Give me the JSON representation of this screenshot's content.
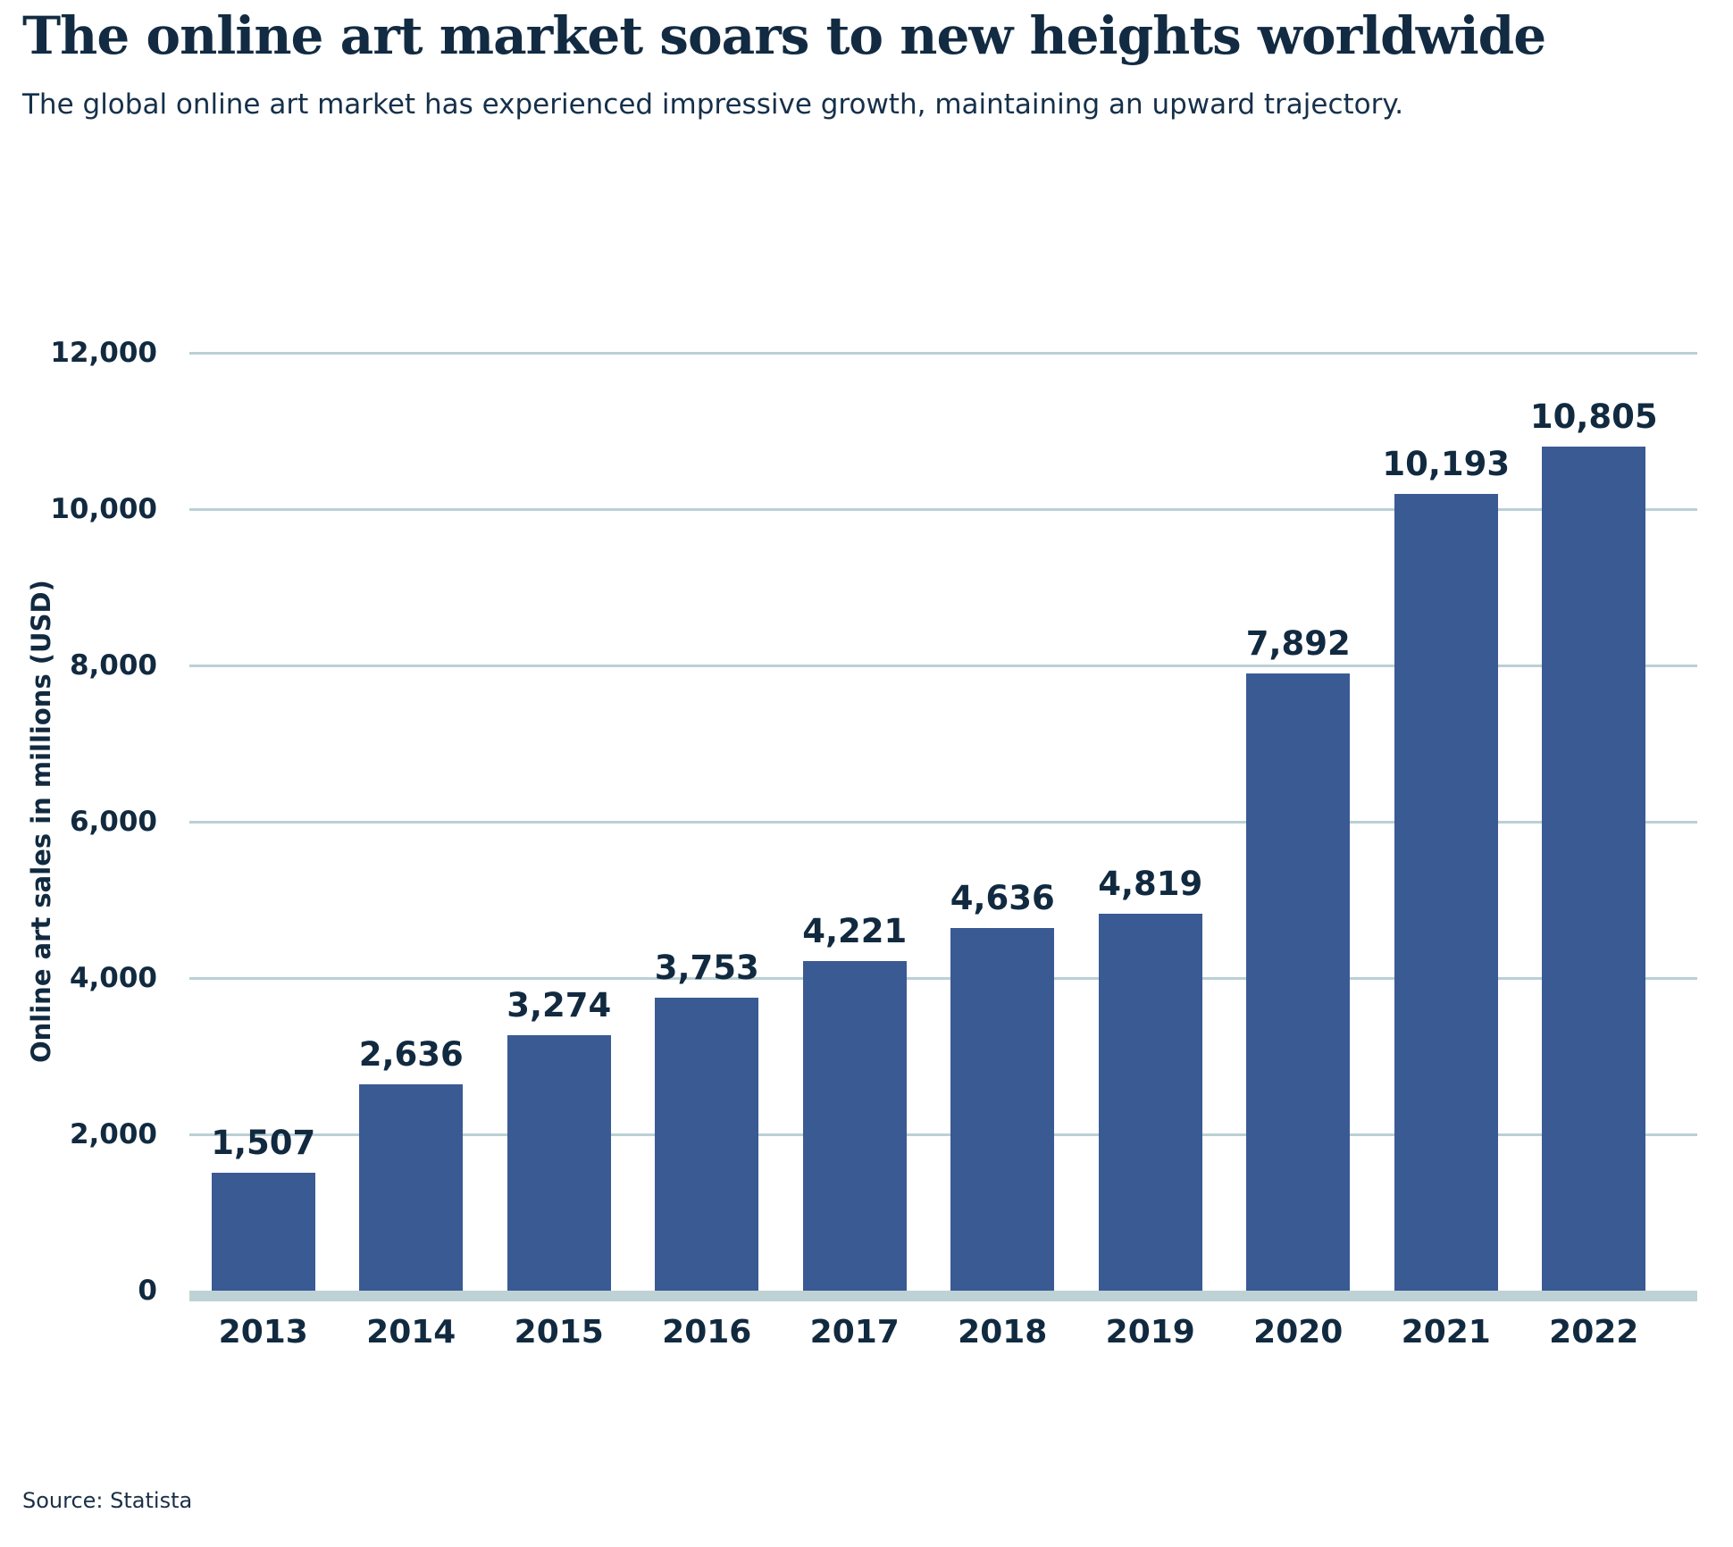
{
  "header": {
    "title": "The online art market soars to new heights worldwide",
    "subtitle": "The global online art market has experienced impressive growth, maintaining an upward trajectory."
  },
  "footer": {
    "source": "Source: Statista"
  },
  "chart_data": {
    "type": "bar",
    "title": "The online art market soars to new heights worldwide",
    "subtitle": "The global online art market has experienced impressive growth, maintaining an upward trajectory.",
    "categories": [
      "2013",
      "2014",
      "2015",
      "2016",
      "2017",
      "2018",
      "2019",
      "2020",
      "2021",
      "2022"
    ],
    "values": [
      1507,
      2636,
      3274,
      3753,
      4221,
      4636,
      4819,
      7892,
      10193,
      10805
    ],
    "value_labels": [
      "1,507",
      "2,636",
      "3,274",
      "3,753",
      "4,221",
      "4,636",
      "4,819",
      "7,892",
      "10,193",
      "10,805"
    ],
    "xlabel": "",
    "ylabel": "Online art sales in millions (USD)",
    "ylim": [
      0,
      12000
    ],
    "yticks": [
      12000,
      10000,
      8000,
      6000,
      4000,
      2000,
      0
    ],
    "ytick_labels": [
      "12,000",
      "10,000",
      "8,000",
      "6,000",
      "4,000",
      "2,000",
      "0"
    ],
    "grid": "horizontal",
    "legend": "none",
    "colors": {
      "bar": "#3a5a94",
      "text": "#112a40",
      "gridline": "#bad0d4",
      "baseline": "#bed2d5",
      "background": "#ffffff"
    }
  }
}
